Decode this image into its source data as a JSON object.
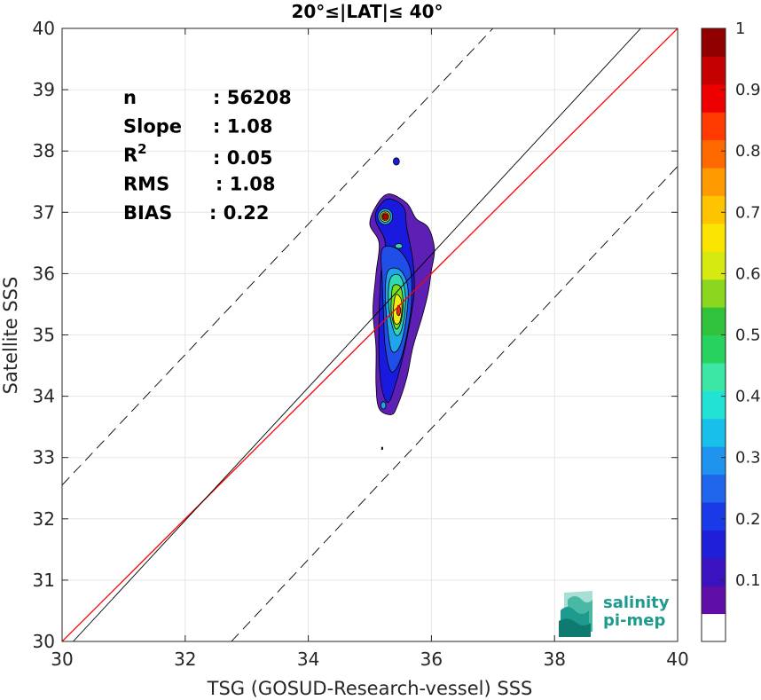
{
  "chart_data": {
    "type": "scatter",
    "subtype": "density-contour",
    "title": "20°≤|LAT|≤ 40°",
    "xlabel": "TSG (GOSUD-Research-vessel) SSS",
    "ylabel": "Satellite SSS",
    "xlim": [
      30,
      40
    ],
    "ylim": [
      30,
      40
    ],
    "xticks": [
      "30",
      "32",
      "34",
      "36",
      "38",
      "40"
    ],
    "yticks": [
      "30",
      "31",
      "32",
      "33",
      "34",
      "35",
      "36",
      "37",
      "38",
      "39",
      "40"
    ],
    "grid": true,
    "stats": [
      {
        "label": "n",
        "sep": ": ",
        "value": "56208"
      },
      {
        "label": "Slope",
        "sep": ": ",
        "value": "1.08"
      },
      {
        "label": "R",
        "sup": "2",
        "sep": ": ",
        "value": "0.05"
      },
      {
        "label": "RMS",
        "sep": ": ",
        "value": "1.08"
      },
      {
        "label": "BIAS",
        "sep": ": ",
        "value": "0.22"
      }
    ],
    "lines": [
      {
        "kind": "identity",
        "color": "#ff0000",
        "x": [
          30,
          40
        ],
        "y": [
          30,
          40
        ]
      },
      {
        "kind": "fit",
        "color": "#000000",
        "x": [
          30.18,
          39.4
        ],
        "y": [
          30,
          40
        ]
      },
      {
        "kind": "upper",
        "color": "#000000",
        "dash": true,
        "x": [
          30,
          37
        ],
        "y": [
          32.55,
          40
        ]
      },
      {
        "kind": "lower",
        "color": "#000000",
        "dash": true,
        "x": [
          32.75,
          40
        ],
        "y": [
          30,
          37.75
        ]
      }
    ],
    "density_levels": [
      {
        "level": 0.05,
        "color": "#5e1fb5",
        "points": [
          [
            35.1,
            37.1
          ],
          [
            35.3,
            37.3
          ],
          [
            35.6,
            37.15
          ],
          [
            35.75,
            36.9
          ],
          [
            35.95,
            36.75
          ],
          [
            36.05,
            36.4
          ],
          [
            36.0,
            36.05
          ],
          [
            35.95,
            35.7
          ],
          [
            35.85,
            35.3
          ],
          [
            35.7,
            34.8
          ],
          [
            35.6,
            34.3
          ],
          [
            35.45,
            33.85
          ],
          [
            35.35,
            33.7
          ],
          [
            35.15,
            33.8
          ],
          [
            35.1,
            34.2
          ],
          [
            35.1,
            34.8
          ],
          [
            35.05,
            35.4
          ],
          [
            35.1,
            36.0
          ],
          [
            35.15,
            36.5
          ],
          [
            35.0,
            36.8
          ]
        ]
      },
      {
        "level": 0.15,
        "color": "#1a1adf",
        "points": [
          [
            35.12,
            37.05
          ],
          [
            35.3,
            37.22
          ],
          [
            35.55,
            37.08
          ],
          [
            35.6,
            36.75
          ],
          [
            35.7,
            36.2
          ],
          [
            35.72,
            35.7
          ],
          [
            35.65,
            35.2
          ],
          [
            35.55,
            34.7
          ],
          [
            35.42,
            34.2
          ],
          [
            35.3,
            33.9
          ],
          [
            35.2,
            34.1
          ],
          [
            35.15,
            34.6
          ],
          [
            35.15,
            35.3
          ],
          [
            35.18,
            36.0
          ],
          [
            35.25,
            36.5
          ],
          [
            35.1,
            36.85
          ]
        ]
      },
      {
        "level": 0.2,
        "color": "#1f4fe6",
        "points": [
          [
            35.2,
            36.4
          ],
          [
            35.45,
            36.4
          ],
          [
            35.65,
            36.1
          ],
          [
            35.68,
            35.6
          ],
          [
            35.62,
            35.1
          ],
          [
            35.5,
            34.6
          ],
          [
            35.35,
            34.4
          ],
          [
            35.25,
            34.8
          ],
          [
            35.22,
            35.4
          ],
          [
            35.2,
            35.9
          ]
        ]
      },
      {
        "level": 0.3,
        "color": "#1fa6ea",
        "points": [
          [
            35.3,
            36.05
          ],
          [
            35.5,
            36.05
          ],
          [
            35.62,
            35.75
          ],
          [
            35.58,
            35.2
          ],
          [
            35.48,
            34.8
          ],
          [
            35.35,
            34.75
          ],
          [
            35.28,
            35.2
          ],
          [
            35.25,
            35.7
          ]
        ]
      },
      {
        "level": 0.45,
        "color": "#2ed9b3",
        "points": [
          [
            35.35,
            35.95
          ],
          [
            35.5,
            35.95
          ],
          [
            35.58,
            35.6
          ],
          [
            35.52,
            35.1
          ],
          [
            35.42,
            35.0
          ],
          [
            35.33,
            35.3
          ],
          [
            35.3,
            35.7
          ]
        ]
      },
      {
        "level": 0.55,
        "color": "#7fde1f",
        "points": [
          [
            35.38,
            35.8
          ],
          [
            35.5,
            35.78
          ],
          [
            35.54,
            35.5
          ],
          [
            35.5,
            35.2
          ],
          [
            35.42,
            35.1
          ],
          [
            35.35,
            35.35
          ],
          [
            35.35,
            35.6
          ]
        ]
      },
      {
        "level": 0.65,
        "color": "#f3e91a",
        "points": [
          [
            35.42,
            35.65
          ],
          [
            35.5,
            35.6
          ],
          [
            35.52,
            35.4
          ],
          [
            35.48,
            35.2
          ],
          [
            35.4,
            35.2
          ],
          [
            35.38,
            35.4
          ]
        ]
      },
      {
        "level": 0.85,
        "color": "#ff2a12",
        "points": [
          [
            35.46,
            35.48
          ],
          [
            35.5,
            35.42
          ],
          [
            35.48,
            35.32
          ],
          [
            35.44,
            35.35
          ]
        ]
      }
    ],
    "density_spots": [
      {
        "x": 35.25,
        "y": 36.93,
        "levels": [
          {
            "color": "#1fa6ea",
            "rx": 0.12,
            "ry": 0.13
          },
          {
            "color": "#f3e91a",
            "rx": 0.085,
            "ry": 0.09
          },
          {
            "color": "#ff6f00",
            "rx": 0.06,
            "ry": 0.065
          },
          {
            "color": "#b50000",
            "rx": 0.04,
            "ry": 0.045
          }
        ]
      },
      {
        "x": 35.47,
        "y": 36.45,
        "levels": [
          {
            "color": "#2ed9b3",
            "rx": 0.06,
            "ry": 0.04
          }
        ]
      },
      {
        "x": 35.22,
        "y": 33.85,
        "levels": [
          {
            "color": "#1fa6ea",
            "rx": 0.04,
            "ry": 0.06
          }
        ]
      },
      {
        "x": 35.43,
        "y": 37.83,
        "levels": [
          {
            "color": "#1a1adf",
            "rx": 0.05,
            "ry": 0.06
          }
        ]
      },
      {
        "x": 35.2,
        "y": 33.15,
        "levels": [
          {
            "color": "#1a1adf",
            "rx": 0.01,
            "ry": 0.02
          }
        ]
      }
    ],
    "colorbar": {
      "range": [
        0,
        1
      ],
      "ticks": [
        "0.1",
        "0.2",
        "0.3",
        "0.4",
        "0.5",
        "0.6",
        "0.7",
        "0.8",
        "0.9",
        "1"
      ],
      "colors": [
        "#ffffff",
        "#5f0fa8",
        "#3a12c0",
        "#1f1fd8",
        "#1a3ae8",
        "#1f66ec",
        "#1f94ee",
        "#19bfeb",
        "#22e2d6",
        "#3ce6a4",
        "#27d35e",
        "#2fc23a",
        "#8bd61f",
        "#d6ea12",
        "#fbe500",
        "#ffc400",
        "#ff9a00",
        "#ff6a00",
        "#ff3a00",
        "#ee0000",
        "#c50000",
        "#900000"
      ]
    }
  },
  "logo": {
    "line1": "salinity",
    "line2": "pi-mep"
  }
}
